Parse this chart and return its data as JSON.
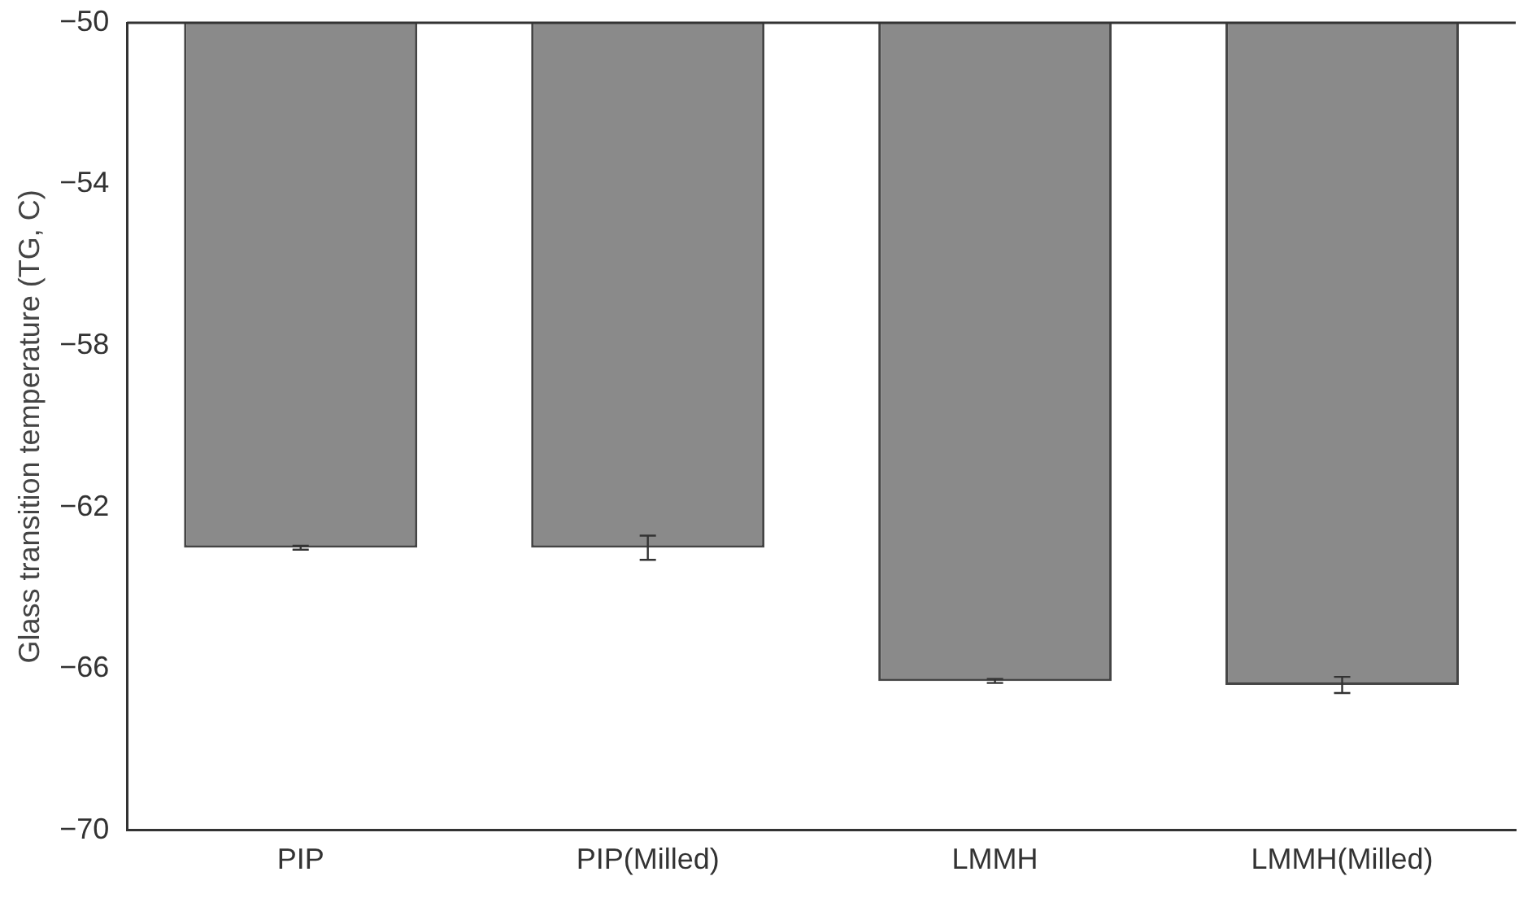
{
  "chart_data": {
    "type": "bar",
    "ylabel": "Glass transition temperature (TG, C)",
    "categories": [
      "PIP",
      "PIP(Milled)",
      "LMMH",
      "LMMH(Milled)"
    ],
    "values": [
      -63.0,
      -63.0,
      -66.3,
      -66.4
    ],
    "errors": [
      0.05,
      0.3,
      0.05,
      0.2
    ],
    "color": "#8a8a8a",
    "ylim": [
      -70,
      -50
    ],
    "yticks": [
      -70,
      -66,
      -62,
      -58,
      -54,
      -50
    ],
    "grid": false,
    "legend": false
  }
}
